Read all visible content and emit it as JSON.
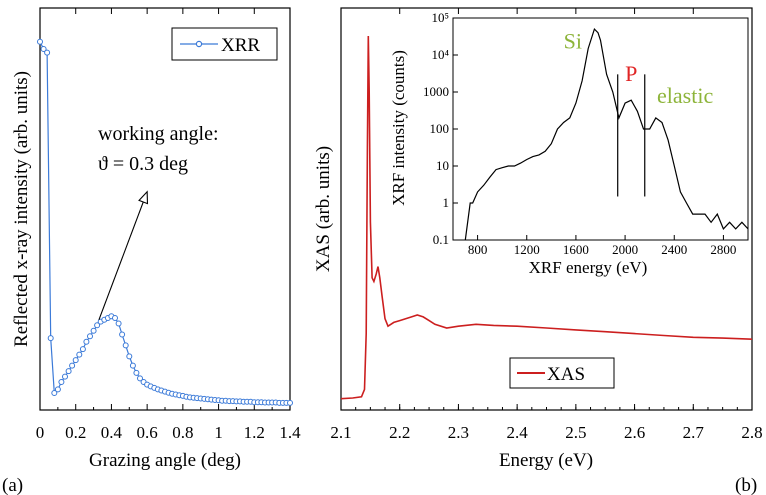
{
  "chart_data": [
    {
      "type": "line",
      "panel_label": "(a)",
      "xlabel": "Grazing angle (deg)",
      "ylabel": "Reflected x-ray intensity (arb. units)",
      "xlim": [
        0,
        1.4
      ],
      "ylim": [
        0,
        1
      ],
      "xticks": [
        "0",
        "0.2",
        "0.4",
        "0.6",
        "0.8",
        "1",
        "1.2",
        "1.4"
      ],
      "legend": {
        "placement": "top-right",
        "color": "#3b7ad8"
      },
      "series": [
        {
          "name": "XRR",
          "color": "#3b7ad8",
          "x": [
            0,
            0.02,
            0.04,
            0.06,
            0.08,
            0.1,
            0.12,
            0.14,
            0.16,
            0.18,
            0.2,
            0.22,
            0.24,
            0.26,
            0.28,
            0.3,
            0.32,
            0.34,
            0.36,
            0.38,
            0.4,
            0.42,
            0.44,
            0.46,
            0.48,
            0.5,
            0.52,
            0.54,
            0.56,
            0.58,
            0.6,
            0.62,
            0.64,
            0.66,
            0.68,
            0.7,
            0.72,
            0.74,
            0.76,
            0.78,
            0.8,
            0.82,
            0.84,
            0.86,
            0.88,
            0.9,
            0.92,
            0.94,
            0.96,
            0.98,
            1.0,
            1.02,
            1.04,
            1.06,
            1.08,
            1.1,
            1.12,
            1.14,
            1.16,
            1.18,
            1.2,
            1.22,
            1.24,
            1.26,
            1.28,
            1.3,
            1.32,
            1.34,
            1.36,
            1.38,
            1.4
          ],
          "y": [
            0.99,
            0.97,
            0.96,
            0.18,
            0.03,
            0.04,
            0.06,
            0.075,
            0.09,
            0.105,
            0.12,
            0.135,
            0.15,
            0.17,
            0.185,
            0.2,
            0.215,
            0.225,
            0.23,
            0.235,
            0.24,
            0.235,
            0.22,
            0.19,
            0.16,
            0.13,
            0.105,
            0.085,
            0.07,
            0.06,
            0.053,
            0.048,
            0.044,
            0.04,
            0.037,
            0.034,
            0.031,
            0.028,
            0.026,
            0.024,
            0.022,
            0.02,
            0.018,
            0.017,
            0.016,
            0.015,
            0.014,
            0.013,
            0.012,
            0.011,
            0.01,
            0.009,
            0.009,
            0.008,
            0.008,
            0.007,
            0.007,
            0.006,
            0.006,
            0.006,
            0.005,
            0.005,
            0.005,
            0.004,
            0.004,
            0.004,
            0.004,
            0.003,
            0.003,
            0.003,
            0.003
          ]
        }
      ],
      "annotation": {
        "line1": "working angle:",
        "line2": "ϑ = 0.3 deg",
        "arrow_from": [
          0.33,
          0.23
        ],
        "arrow_to": [
          0.6,
          0.58
        ]
      }
    },
    {
      "type": "line",
      "panel_label": "(b)",
      "xlabel": "Energy (eV)",
      "ylabel": "XAS (arb. units)",
      "xlim": [
        2.1,
        2.8
      ],
      "ylim": [
        0,
        1
      ],
      "xticks": [
        "2.1",
        "2.2",
        "2.3",
        "2.4",
        "2.5",
        "2.6",
        "2.7",
        "2.8"
      ],
      "legend": {
        "placement": "bottom-right",
        "color": "#cc1f1f"
      },
      "series": [
        {
          "name": "XAS",
          "color": "#cc1f1f",
          "x": [
            2.1,
            2.12,
            2.135,
            2.14,
            2.143,
            2.145,
            2.1465,
            2.148,
            2.15,
            2.153,
            2.156,
            2.16,
            2.163,
            2.166,
            2.17,
            2.175,
            2.18,
            2.19,
            2.2,
            2.21,
            2.22,
            2.23,
            2.24,
            2.25,
            2.26,
            2.28,
            2.3,
            2.33,
            2.36,
            2.4,
            2.45,
            2.5,
            2.55,
            2.6,
            2.65,
            2.7,
            2.75,
            2.8
          ],
          "y": [
            0.025,
            0.027,
            0.03,
            0.05,
            0.2,
            0.7,
            1.0,
            0.85,
            0.5,
            0.35,
            0.34,
            0.36,
            0.38,
            0.35,
            0.3,
            0.24,
            0.22,
            0.23,
            0.235,
            0.24,
            0.245,
            0.25,
            0.245,
            0.235,
            0.225,
            0.215,
            0.22,
            0.225,
            0.222,
            0.22,
            0.215,
            0.21,
            0.205,
            0.2,
            0.195,
            0.19,
            0.188,
            0.185
          ]
        }
      ]
    },
    {
      "type": "line",
      "role": "inset",
      "xlabel": "XRF energy (eV)",
      "ylabel": "XRF intensity (counts)",
      "xlim": [
        600,
        3000
      ],
      "ylim": [
        0.1,
        100000
      ],
      "yscale": "log",
      "xticks": [
        "800",
        "1200",
        "1600",
        "2000",
        "2400",
        "2800"
      ],
      "yticks": [
        "0.1",
        "1",
        "10",
        "100",
        "1000",
        "10⁴",
        "10⁵"
      ],
      "markers": [
        {
          "x": 1940,
          "low": 1.5,
          "high": 3000
        },
        {
          "x": 2160,
          "low": 1.5,
          "high": 3000
        }
      ],
      "labels": [
        {
          "text": "Si",
          "color": "#8db43a",
          "x": 1500,
          "y": 15000
        },
        {
          "text": "P",
          "color": "#e02424",
          "x": 2000,
          "y": 2000
        },
        {
          "text": "elastic",
          "color": "#8db43a",
          "x": 2260,
          "y": 500
        }
      ],
      "series": [
        {
          "color": "#000000",
          "x": [
            700,
            740,
            760,
            800,
            850,
            900,
            950,
            1000,
            1050,
            1100,
            1150,
            1200,
            1250,
            1300,
            1350,
            1400,
            1450,
            1500,
            1550,
            1600,
            1650,
            1700,
            1750,
            1780,
            1800,
            1850,
            1900,
            1950,
            2000,
            2050,
            2100,
            2150,
            2200,
            2250,
            2300,
            2350,
            2400,
            2450,
            2500,
            2550,
            2600,
            2650,
            2700,
            2750,
            2800,
            2850,
            2900,
            2950,
            3000
          ],
          "y": [
            0.1,
            1,
            1,
            2,
            3,
            5,
            8,
            9,
            10,
            10,
            12,
            15,
            18,
            20,
            25,
            40,
            100,
            150,
            200,
            500,
            2000,
            15000,
            50000,
            40000,
            25000,
            3000,
            1000,
            200,
            500,
            600,
            300,
            100,
            100,
            200,
            150,
            50,
            10,
            2,
            1,
            0.5,
            0.5,
            0.5,
            0.3,
            0.5,
            0.2,
            0.3,
            0.2,
            0.3,
            0.2
          ]
        }
      ]
    }
  ]
}
